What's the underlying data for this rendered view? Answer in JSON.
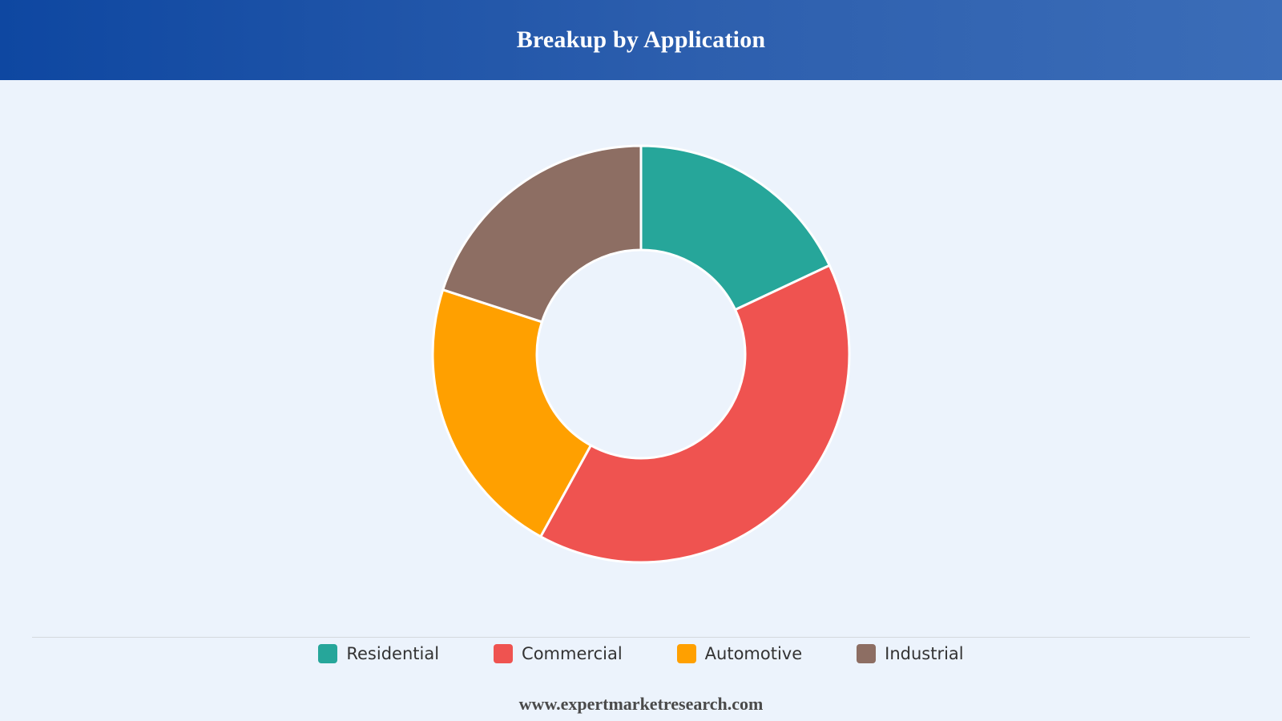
{
  "header": {
    "title": "Breakup by Application"
  },
  "chart_data": {
    "type": "pie",
    "variant": "donut",
    "title": "Breakup by Application",
    "categories": [
      "Residential",
      "Commercial",
      "Automotive",
      "Industrial"
    ],
    "values": [
      18,
      40,
      22,
      20
    ],
    "colors": [
      "#26a69a",
      "#ef5350",
      "#ffa000",
      "#8d6e63"
    ],
    "start_angle_deg": 0,
    "direction": "clockwise",
    "legend_position": "bottom"
  },
  "footer": {
    "source": "www.expertmarketresearch.com"
  }
}
